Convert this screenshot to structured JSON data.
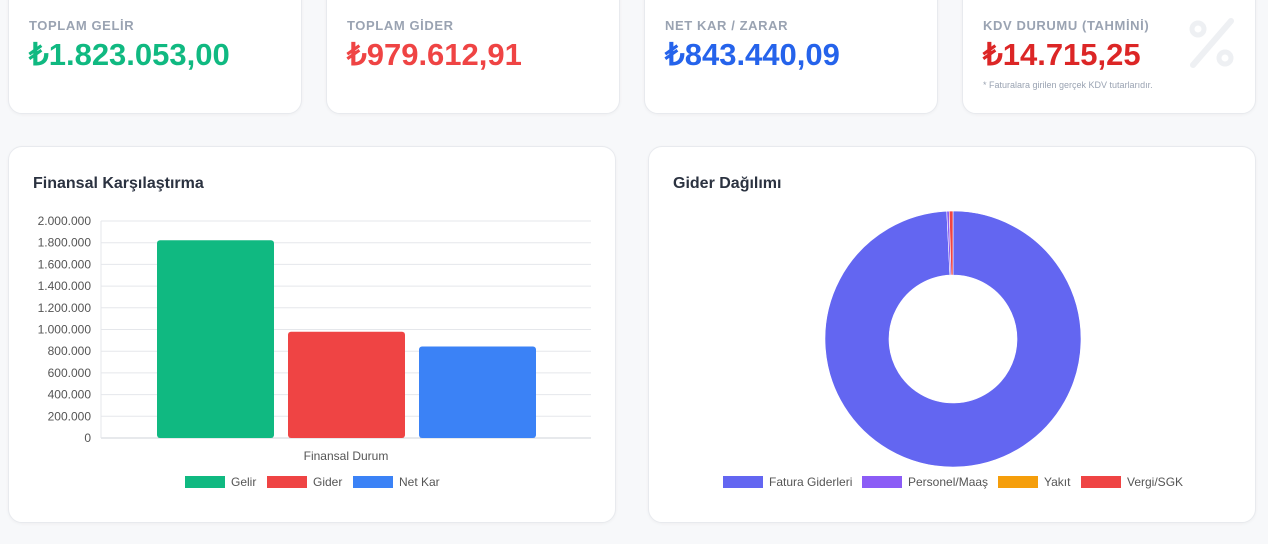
{
  "stats": [
    {
      "label": "TOPLAM GELİR",
      "value": "₺1.823.053,00",
      "color": "#10b981"
    },
    {
      "label": "TOPLAM GİDER",
      "value": "₺979.612,91",
      "color": "#ef4444"
    },
    {
      "label": "NET KAR / ZARAR",
      "value": "₺843.440,09",
      "color": "#2563eb"
    },
    {
      "label": "KDV DURUMU (TAHMİNİ)",
      "value": "₺14.715,25",
      "color": "#dc2626",
      "note": "* Faturalara girilen gerçek KDV tutarlarıdır.",
      "icon": "percent-icon"
    }
  ],
  "chart_data": [
    {
      "type": "bar",
      "title": "Finansal Karşılaştırma",
      "xlabel": "Finansal Durum",
      "ylim": [
        0,
        2000000
      ],
      "yticks": [
        "0",
        "200.000",
        "400.000",
        "600.000",
        "800.000",
        "1.000.000",
        "1.200.000",
        "1.400.000",
        "1.600.000",
        "1.800.000",
        "2.000.000"
      ],
      "grid": true,
      "legend": "bottom",
      "series": [
        {
          "name": "Gelir",
          "value": 1823053,
          "color": "#10b981"
        },
        {
          "name": "Gider",
          "value": 979612.91,
          "color": "#ef4444"
        },
        {
          "name": "Net Kar",
          "value": 843440.09,
          "color": "#3b82f6"
        }
      ]
    },
    {
      "type": "pie",
      "title": "Gider Dağılımı",
      "donut": true,
      "legend": "bottom",
      "slices": [
        {
          "name": "Fatura Giderleri",
          "value": 972000,
          "color": "#6366f1"
        },
        {
          "name": "Personel/Maaş",
          "value": 3000,
          "color": "#8b5cf6"
        },
        {
          "name": "Yakıt",
          "value": 0,
          "color": "#f59e0b"
        },
        {
          "name": "Vergi/SGK",
          "value": 4600,
          "color": "#ef4444"
        }
      ]
    }
  ]
}
